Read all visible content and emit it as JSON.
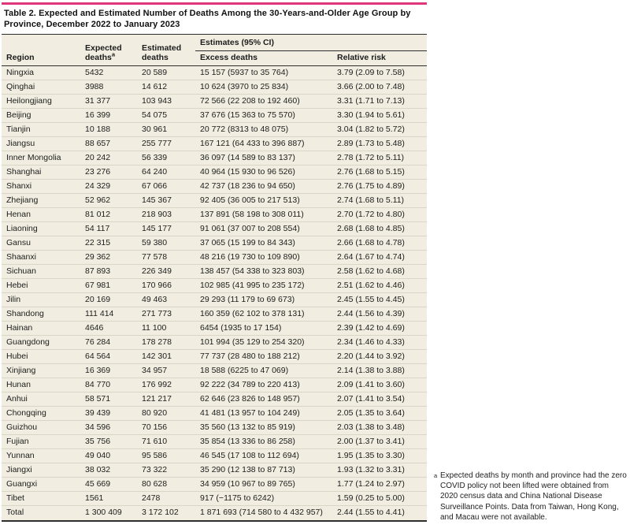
{
  "colors": {
    "accent_bar": "#e0367c",
    "table_background": "#f1eee1"
  },
  "table": {
    "title": "Table 2. Expected and Estimated Number of Deaths Among the 30-Years-and-Older Age Group by Province, December 2022 to January 2023",
    "span_header": "Estimates (95% CI)",
    "columns": [
      {
        "label": "Region",
        "sup": ""
      },
      {
        "label": "Expected deaths",
        "sup": "a"
      },
      {
        "label": "Estimated deaths",
        "sup": ""
      },
      {
        "label": "Excess deaths",
        "sup": ""
      },
      {
        "label": "Relative risk",
        "sup": ""
      }
    ],
    "rows": [
      [
        "Ningxia",
        "5432",
        "20 589",
        "15 157 (5937 to 35 764)",
        "3.79 (2.09 to 7.58)"
      ],
      [
        "Qinghai",
        "3988",
        "14 612",
        "10 624 (3970 to 25 834)",
        "3.66 (2.00 to 7.48)"
      ],
      [
        "Heilongjiang",
        "31 377",
        "103 943",
        "72 566 (22 208 to 192 460)",
        "3.31 (1.71 to 7.13)"
      ],
      [
        "Beijing",
        "16 399",
        "54 075",
        "37 676 (15 363 to 75 570)",
        "3.30 (1.94 to 5.61)"
      ],
      [
        "Tianjin",
        "10 188",
        "30 961",
        "20 772 (8313 to 48 075)",
        "3.04 (1.82 to 5.72)"
      ],
      [
        "Jiangsu",
        "88 657",
        "255 777",
        "167 121 (64 433 to 396 887)",
        "2.89 (1.73 to 5.48)"
      ],
      [
        "Inner Mongolia",
        "20 242",
        "56 339",
        "36 097 (14 589 to 83 137)",
        "2.78 (1.72 to 5.11)"
      ],
      [
        "Shanghai",
        "23 276",
        "64 240",
        "40 964 (15 930 to 96 526)",
        "2.76 (1.68 to 5.15)"
      ],
      [
        "Shanxi",
        "24 329",
        "67 066",
        "42 737 (18 236 to 94 650)",
        "2.76 (1.75 to 4.89)"
      ],
      [
        "Zhejiang",
        "52 962",
        "145 367",
        "92 405 (36 005 to 217 513)",
        "2.74 (1.68 to 5.11)"
      ],
      [
        "Henan",
        "81 012",
        "218 903",
        "137 891 (58 198 to 308 011)",
        "2.70 (1.72 to 4.80)"
      ],
      [
        "Liaoning",
        "54 117",
        "145 177",
        "91 061 (37 007 to 208 554)",
        "2.68 (1.68 to 4.85)"
      ],
      [
        "Gansu",
        "22 315",
        "59 380",
        "37 065 (15 199 to 84 343)",
        "2.66 (1.68 to 4.78)"
      ],
      [
        "Shaanxi",
        "29 362",
        "77 578",
        "48 216 (19 730 to 109 890)",
        "2.64 (1.67 to 4.74)"
      ],
      [
        "Sichuan",
        "87 893",
        "226 349",
        "138 457 (54 338 to 323 803)",
        "2.58 (1.62 to 4.68)"
      ],
      [
        "Hebei",
        "67 981",
        "170 966",
        "102 985 (41 995 to 235 172)",
        "2.51 (1.62 to 4.46)"
      ],
      [
        "Jilin",
        "20 169",
        "49 463",
        "29 293 (11 179 to 69 673)",
        "2.45 (1.55 to 4.45)"
      ],
      [
        "Shandong",
        "111 414",
        "271 773",
        "160 359 (62 102 to 378 131)",
        "2.44 (1.56 to 4.39)"
      ],
      [
        "Hainan",
        "4646",
        "11 100",
        "6454 (1935 to 17 154)",
        "2.39 (1.42 to 4.69)"
      ],
      [
        "Guangdong",
        "76 284",
        "178 278",
        "101 994 (35 129 to 254 320)",
        "2.34 (1.46 to 4.33)"
      ],
      [
        "Hubei",
        "64 564",
        "142 301",
        "77 737 (28 480 to 188 212)",
        "2.20 (1.44 to 3.92)"
      ],
      [
        "Xinjiang",
        "16 369",
        "34 957",
        "18 588 (6225 to 47 069)",
        "2.14 (1.38 to 3.88)"
      ],
      [
        "Hunan",
        "84 770",
        "176 992",
        "92 222 (34 789 to 220 413)",
        "2.09 (1.41 to 3.60)"
      ],
      [
        "Anhui",
        "58 571",
        "121 217",
        "62 646 (23 826 to 148 957)",
        "2.07 (1.41 to 3.54)"
      ],
      [
        "Chongqing",
        "39 439",
        "80 920",
        "41 481 (13 957 to 104 249)",
        "2.05 (1.35 to 3.64)"
      ],
      [
        "Guizhou",
        "34 596",
        "70 156",
        "35 560 (13 132 to 85 919)",
        "2.03 (1.38 to 3.48)"
      ],
      [
        "Fujian",
        "35 756",
        "71 610",
        "35 854 (13 336 to 86 258)",
        "2.00 (1.37 to 3.41)"
      ],
      [
        "Yunnan",
        "49 040",
        "95 586",
        "46 545 (17 108 to 112 694)",
        "1.95 (1.35 to 3.30)"
      ],
      [
        "Jiangxi",
        "38 032",
        "73 322",
        "35 290 (12 138 to 87 713)",
        "1.93 (1.32 to 3.31)"
      ],
      [
        "Guangxi",
        "45 669",
        "80 628",
        "34 959 (10 967 to 89 765)",
        "1.77 (1.24 to 2.97)"
      ],
      [
        "Tibet",
        "1561",
        "2478",
        "917 (−1175 to 6242)",
        "1.59 (0.25 to 5.00)"
      ],
      [
        "Total",
        "1 300 409",
        "3 172 102",
        "1 871 693 (714 580 to 4 432 957)",
        "2.44 (1.55 to 4.41)"
      ]
    ]
  },
  "footnote": {
    "marker": "a",
    "text": "Expected deaths by month and province had the zero COVID policy not been lifted were obtained from 2020 census data and China National Disease Surveillance Points. Data from Taiwan, Hong Kong, and Macau were not available."
  }
}
